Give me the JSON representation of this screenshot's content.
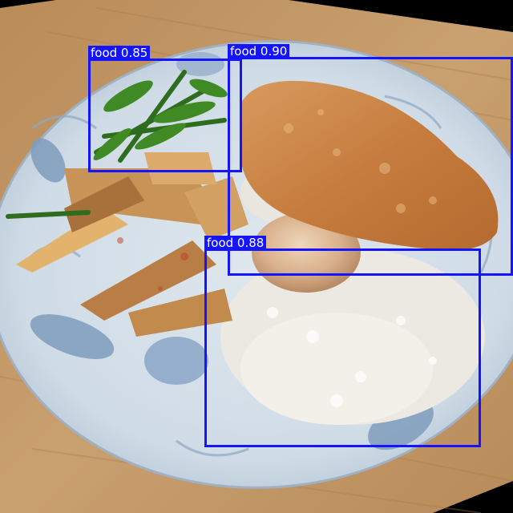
{
  "detections": [
    {
      "label": "food 0.85"
    },
    {
      "label": "food 0.90"
    },
    {
      "label": "food 0.88"
    }
  ],
  "colors": {
    "box": "#1414ff",
    "label_text": "#ffffff"
  }
}
